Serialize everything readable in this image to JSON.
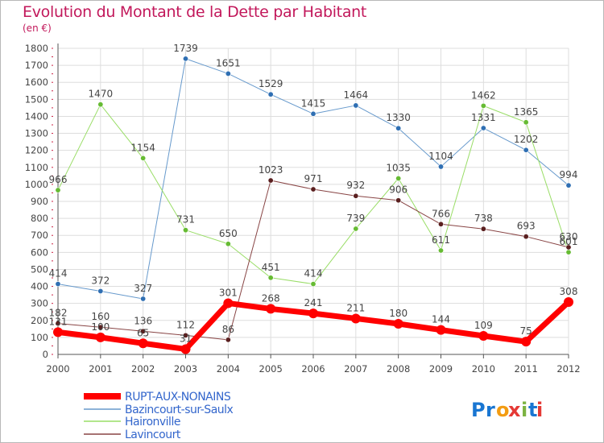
{
  "title": "Evolution du Montant de la Dette par Habitant",
  "unit": "(en €)",
  "logo": {
    "text": "Proxiti",
    "colors": {
      "P": "#1976d2",
      "r": "#1976d2",
      "o": "#f39c12",
      "x": "#e53935",
      "i": "#7cb342",
      "t": "#1976d2",
      "i2": "#e53935"
    }
  },
  "chart_data": {
    "type": "line",
    "x": [
      "2000",
      "2001",
      "2002",
      "2003",
      "2004",
      "2005",
      "2006",
      "2007",
      "2008",
      "2009",
      "2010",
      "2011",
      "2012"
    ],
    "ylim": [
      0,
      1800
    ],
    "yticks": [
      0,
      100,
      200,
      300,
      400,
      500,
      600,
      700,
      800,
      900,
      1000,
      1100,
      1200,
      1300,
      1400,
      1500,
      1600,
      1700,
      1800
    ],
    "grid": true,
    "legend_position": "bottom-left",
    "series": [
      {
        "name": "RUPT-AUX-NONAINS",
        "color": "#ff0000",
        "width": 7,
        "values": [
          131,
          100,
          65,
          31,
          301,
          268,
          241,
          211,
          180,
          144,
          109,
          75,
          308
        ],
        "labels": [
          "131",
          "100",
          "65",
          "31",
          "301",
          "268",
          "241",
          "211",
          "180",
          "144",
          "109",
          "75",
          "308"
        ]
      },
      {
        "name": "Bazincourt-sur-Saulx",
        "color": "#6699cc",
        "width": 1,
        "values": [
          414,
          372,
          327,
          1739,
          1651,
          1529,
          1415,
          1464,
          1330,
          1104,
          1331,
          1202,
          994
        ],
        "labels": [
          "414",
          "372",
          "327",
          "1739",
          "1651",
          "1529",
          "1415",
          "1464",
          "1330",
          "1104",
          "1331",
          "1202",
          "994"
        ]
      },
      {
        "name": "Haironville",
        "color": "#99dd66",
        "width": 1,
        "values": [
          966,
          1470,
          1154,
          731,
          650,
          451,
          414,
          739,
          1035,
          611,
          1462,
          1365,
          601
        ],
        "labels": [
          "966",
          "1470",
          "1154",
          "731",
          "650",
          "451",
          "414",
          "739",
          "1035",
          "611",
          "1462",
          "1365",
          "601"
        ]
      },
      {
        "name": "Lavincourt",
        "color": "#884444",
        "width": 1,
        "values": [
          182,
          160,
          136,
          112,
          86,
          1023,
          971,
          932,
          906,
          766,
          738,
          693,
          630
        ],
        "labels": [
          "182",
          "160",
          "136",
          "112",
          "86",
          "1023",
          "971",
          "932",
          "906",
          "766",
          "738",
          "693",
          "630"
        ]
      }
    ]
  }
}
